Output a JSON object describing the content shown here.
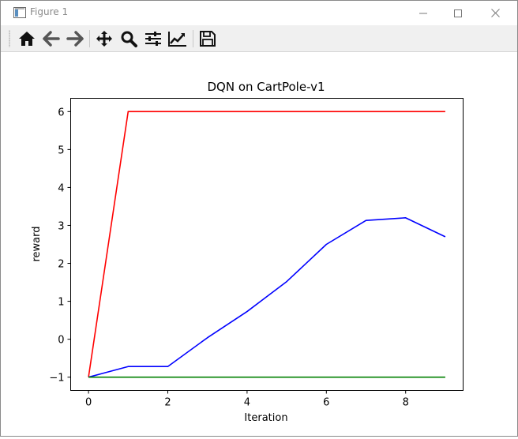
{
  "window": {
    "title": "Figure 1",
    "minimize_icon": "minimize-icon",
    "maximize_icon": "maximize-icon",
    "close_icon": "close-icon"
  },
  "toolbar": {
    "tools": [
      {
        "name": "home-button",
        "icon": "home-icon"
      },
      {
        "name": "back-button",
        "icon": "arrow-left-icon"
      },
      {
        "name": "forward-button",
        "icon": "arrow-right-icon"
      },
      {
        "name": "pan-button",
        "icon": "move-icon"
      },
      {
        "name": "zoom-button",
        "icon": "magnifier-icon"
      },
      {
        "name": "subplots-button",
        "icon": "sliders-icon"
      },
      {
        "name": "edit-axis-button",
        "icon": "chart-line-icon"
      },
      {
        "name": "save-button",
        "icon": "floppy-disk-icon"
      }
    ]
  },
  "chart_data": {
    "type": "line",
    "title": "DQN on CartPole-v1",
    "xlabel": "Iteration",
    "ylabel": "reward",
    "xlim": [
      -0.45,
      9.45
    ],
    "ylim": [
      -1.35,
      6.35
    ],
    "xticks": [
      0,
      2,
      4,
      6,
      8
    ],
    "yticks": [
      -1,
      0,
      1,
      2,
      3,
      4,
      5,
      6
    ],
    "grid": false,
    "x": [
      0,
      1,
      2,
      3,
      4,
      5,
      6,
      7,
      8,
      9
    ],
    "series": [
      {
        "color": "#ff0000",
        "values": [
          -1,
          6,
          6,
          6,
          6,
          6,
          6,
          6,
          6,
          6
        ]
      },
      {
        "color": "#0000ff",
        "values": [
          -1,
          -0.72,
          -0.72,
          0.04,
          0.73,
          1.52,
          2.5,
          3.13,
          3.2,
          2.7
        ]
      },
      {
        "color": "#008000",
        "values": [
          -1,
          -1,
          -1,
          -1,
          -1,
          -1,
          -1,
          -1,
          -1,
          -1
        ]
      }
    ]
  }
}
